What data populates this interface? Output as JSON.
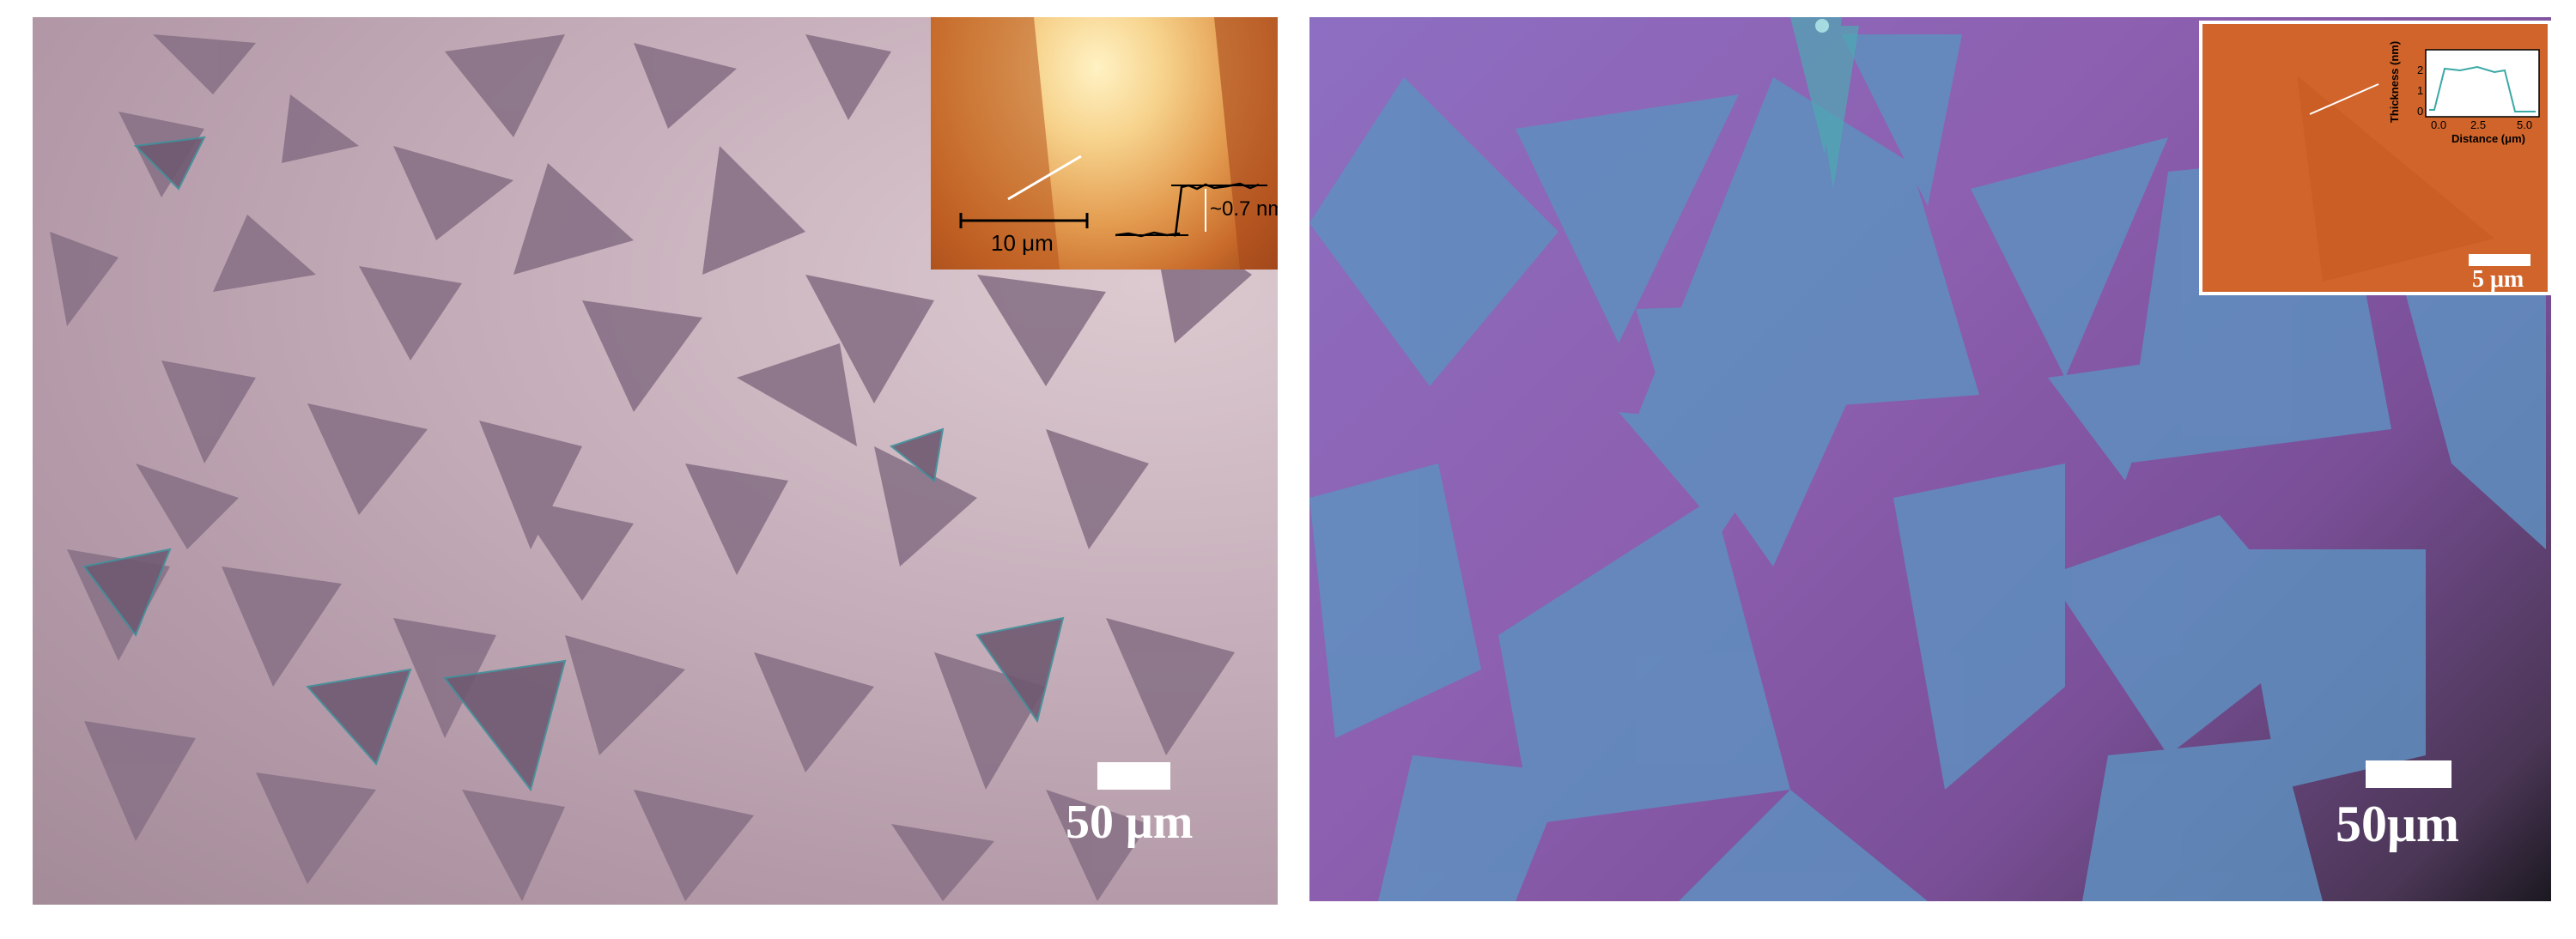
{
  "left_panel": {
    "scale_label": "50 μm",
    "inset": {
      "scale_label": "10 μm",
      "step_label": "~0.7 nm"
    }
  },
  "right_panel": {
    "scale_label": "50μm",
    "inset": {
      "scale_label": "5 μm",
      "plot": {
        "ylabel": "Thickness (nm)",
        "xlabel": "Distance (μm)",
        "x_ticks": [
          "0.0",
          "2.5",
          "5.0"
        ],
        "y_ticks": [
          "0",
          "1",
          "2"
        ]
      }
    }
  },
  "colors": {
    "left_substrate": "#c9b2bd",
    "left_flake": "#8a7388",
    "right_substrate": "#8d5fb0",
    "right_flake": "#5f8fbf",
    "afm_orange": "#d0642a"
  }
}
